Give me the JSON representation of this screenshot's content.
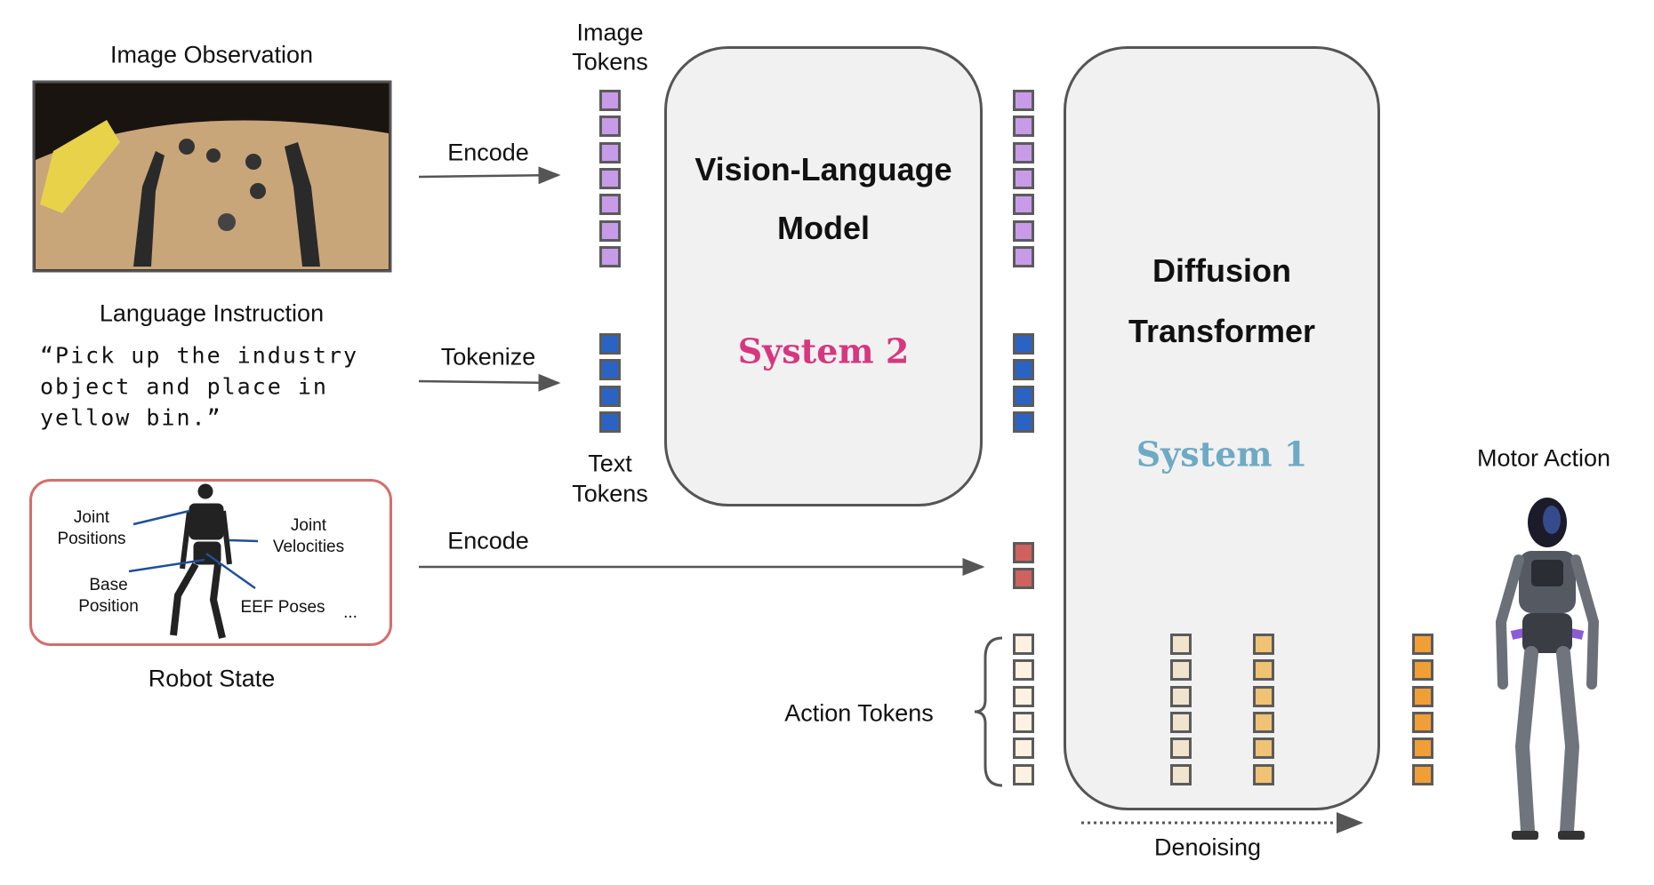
{
  "inputs": {
    "image_observation_label": "Image Observation",
    "language_instruction_label": "Language Instruction",
    "instruction_lines": [
      "“Pick up the industry",
      "object and place in",
      "yellow bin.”"
    ],
    "robot_state_label": "Robot State",
    "robot_state_annotations": {
      "joint_positions": [
        "Joint",
        "Positions"
      ],
      "joint_velocities": [
        "Joint",
        "Velocities"
      ],
      "base_position": [
        "Base",
        "Position"
      ],
      "eef_poses": "EEF Poses",
      "ellipsis": "..."
    }
  },
  "arrows": {
    "encode_image": "Encode",
    "tokenize": "Tokenize",
    "encode_state": "Encode"
  },
  "tokens": {
    "image_tokens_label": [
      "Image",
      "Tokens"
    ],
    "text_tokens_label": [
      "Text",
      "Tokens"
    ],
    "action_tokens_label": "Action Tokens",
    "image_token_count": 7,
    "text_token_count": 4,
    "state_token_count": 2,
    "action_token_count": 6
  },
  "vlm": {
    "title_lines": [
      "Vision-Language",
      "Model"
    ],
    "system": "System 2"
  },
  "dit": {
    "title_lines": [
      "Diffusion",
      "Transformer"
    ],
    "system": "System 1"
  },
  "output": {
    "denoising_label": "Denoising",
    "motor_action_label": "Motor Action"
  },
  "colors": {
    "image_token": "#c89be8",
    "text_token": "#2b63c4",
    "state_token": "#cf625f",
    "action_noise": "#fdf2e1",
    "action_step1": "#f1e4cf",
    "action_step2": "#f0c274",
    "action_final": "#f09f37",
    "system2": "#d6377f",
    "system1": "#6eaac4",
    "robot_state_border": "#d46e6b"
  }
}
